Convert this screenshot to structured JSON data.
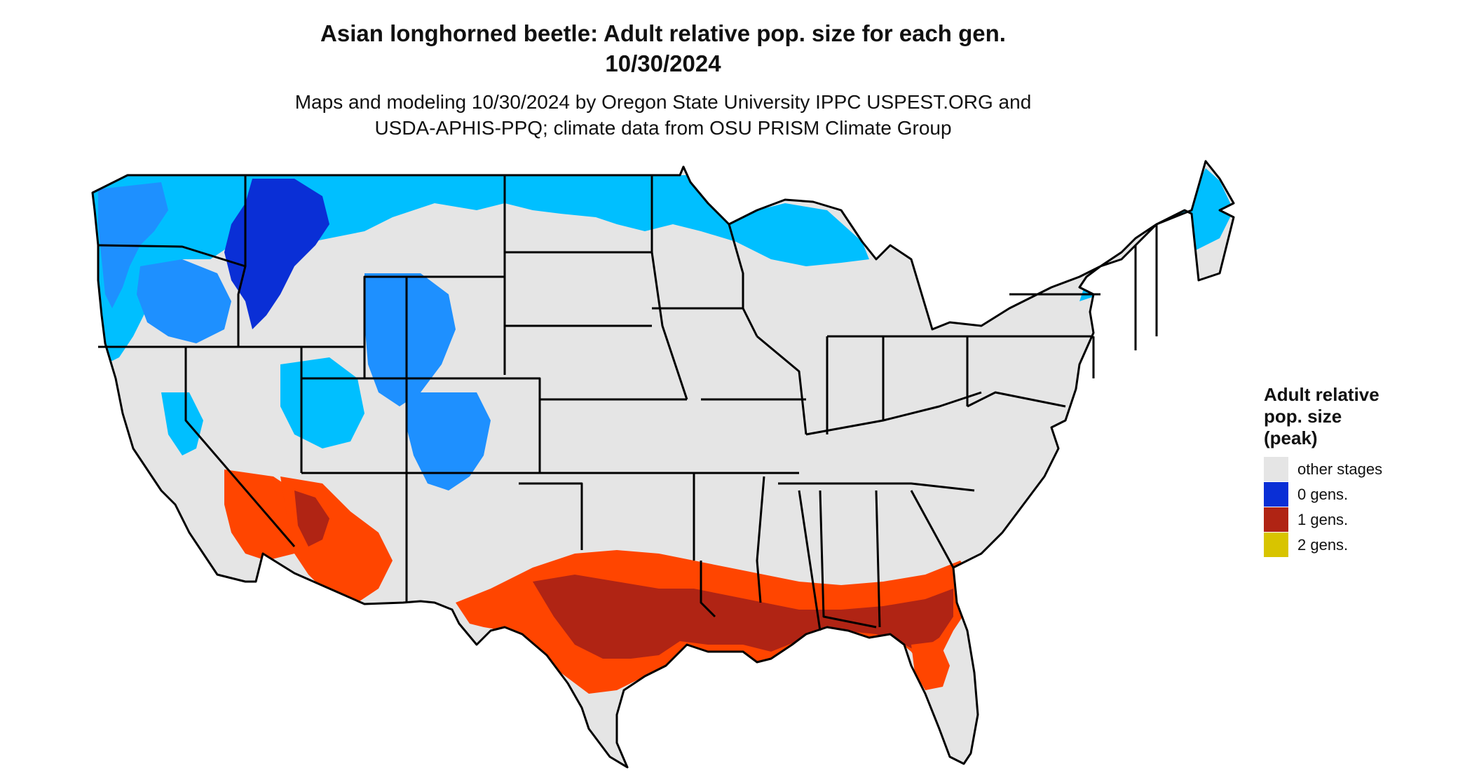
{
  "title": {
    "line1": "Asian longhorned beetle: Adult relative pop. size for each gen.",
    "line2": "10/30/2024"
  },
  "subtitle": {
    "line1": "Maps and modeling 10/30/2024 by Oregon State University IPPC USPEST.ORG and",
    "line2": "USDA-APHIS-PPQ; climate data from OSU PRISM Climate Group"
  },
  "legend": {
    "title_lines": [
      "Adult relative",
      "pop. size",
      "(peak)"
    ],
    "items": [
      {
        "label": "other stages",
        "color": "#e5e5e5"
      },
      {
        "label": "0 gens.",
        "color": "#0a2fd6"
      },
      {
        "label": "1 gens.",
        "color": "#b02414"
      },
      {
        "label": "2 gens.",
        "color": "#d8c400"
      }
    ]
  },
  "map_colors": {
    "land": "#e5e5e5",
    "light_blue": "#00bfff",
    "mid_blue": "#1e90ff",
    "dark_blue": "#0a2fd6",
    "orange_red": "#ff4500",
    "dark_red": "#b02414",
    "border": "#000000"
  }
}
